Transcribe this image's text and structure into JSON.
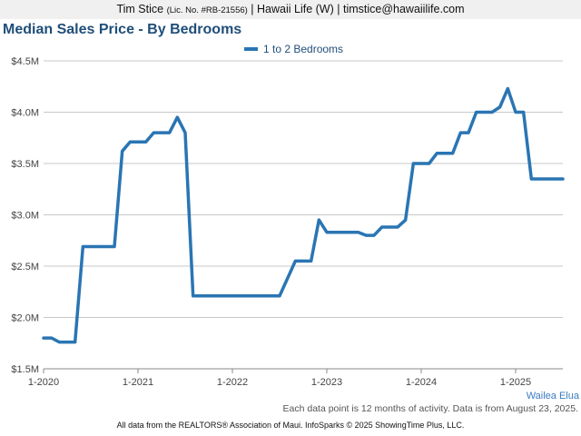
{
  "header": {
    "agent_name": "Tim Stice",
    "license": "(Lic. No. #RB-21556)",
    "brokerage": "| Hawaii Life (W) |",
    "email": "timstice@hawaiilife.com"
  },
  "area_label": "Wailea Elua",
  "footnote": "Each data point is 12 months of activity. Data is from August 23, 2025.",
  "credits": "All data from the REALTORS® Association of Maui. InfoSparks © 2025 ShowingTime Plus, LLC.",
  "colors": {
    "series": "#2a75b3",
    "title": "#1f4e79",
    "grid": "#c8c8c8"
  },
  "chart_data": {
    "type": "line",
    "title": "Median Sales Price - By Bedrooms",
    "xlabel": "",
    "ylabel": "",
    "x_ticks": [
      "1-2020",
      "1-2021",
      "1-2022",
      "1-2023",
      "1-2024",
      "1-2025"
    ],
    "y_ticks": [
      "$1.5M",
      "$2.0M",
      "$2.5M",
      "$3.0M",
      "$3.5M",
      "$4.0M",
      "$4.5M"
    ],
    "ylim": [
      1500000,
      4500000
    ],
    "xlim": [
      "2020-01",
      "2025-07"
    ],
    "grid": true,
    "legend_position": "top-center",
    "x": [
      "2020-01",
      "2020-02",
      "2020-03",
      "2020-04",
      "2020-05",
      "2020-06",
      "2020-07",
      "2020-08",
      "2020-09",
      "2020-10",
      "2020-11",
      "2020-12",
      "2021-01",
      "2021-02",
      "2021-03",
      "2021-04",
      "2021-05",
      "2021-06",
      "2021-07",
      "2021-08",
      "2021-09",
      "2021-10",
      "2021-11",
      "2021-12",
      "2022-01",
      "2022-02",
      "2022-03",
      "2022-04",
      "2022-05",
      "2022-06",
      "2022-07",
      "2022-08",
      "2022-09",
      "2022-10",
      "2022-11",
      "2022-12",
      "2023-01",
      "2023-02",
      "2023-03",
      "2023-04",
      "2023-05",
      "2023-06",
      "2023-07",
      "2023-08",
      "2023-09",
      "2023-10",
      "2023-11",
      "2023-12",
      "2024-01",
      "2024-02",
      "2024-03",
      "2024-04",
      "2024-05",
      "2024-06",
      "2024-07",
      "2024-08",
      "2024-09",
      "2024-10",
      "2024-11",
      "2024-12",
      "2025-01",
      "2025-02",
      "2025-03",
      "2025-04",
      "2025-05",
      "2025-06",
      "2025-07"
    ],
    "series": [
      {
        "name": "1 to 2 Bedrooms",
        "values": [
          1800000,
          1800000,
          1760000,
          1760000,
          1760000,
          2690000,
          2690000,
          2690000,
          2690000,
          2690000,
          3620000,
          3710000,
          3710000,
          3710000,
          3800000,
          3800000,
          3800000,
          3950000,
          3800000,
          2210000,
          2210000,
          2210000,
          2210000,
          2210000,
          2210000,
          2210000,
          2210000,
          2210000,
          2210000,
          2210000,
          2210000,
          2380000,
          2550000,
          2550000,
          2550000,
          2950000,
          2830000,
          2830000,
          2830000,
          2830000,
          2830000,
          2800000,
          2800000,
          2880000,
          2880000,
          2880000,
          2950000,
          3500000,
          3500000,
          3500000,
          3600000,
          3600000,
          3600000,
          3800000,
          3800000,
          4000000,
          4000000,
          4000000,
          4050000,
          4230000,
          4000000,
          4000000,
          3350000,
          3350000,
          3350000,
          3350000,
          3350000
        ]
      }
    ]
  }
}
